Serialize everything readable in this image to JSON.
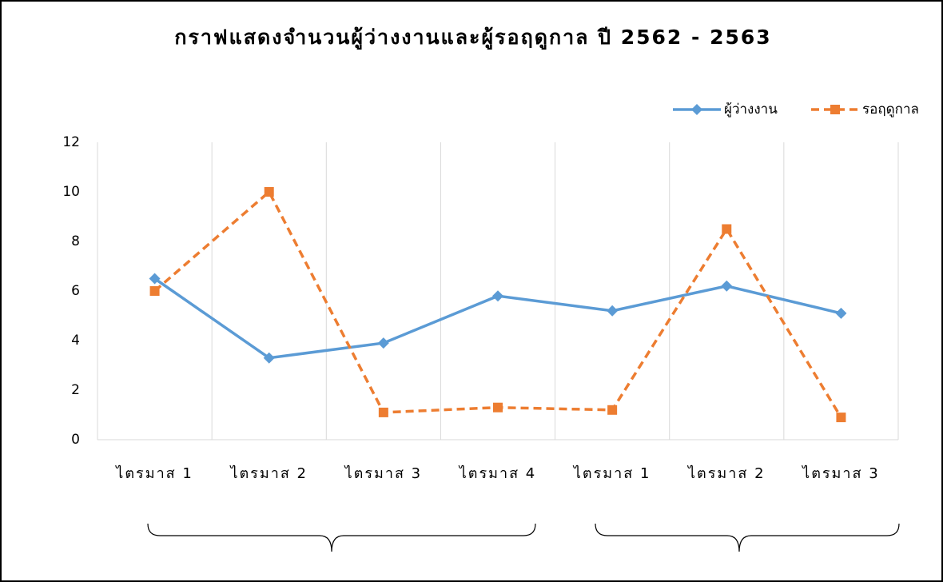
{
  "chart_data": {
    "type": "line",
    "title": "กราฟแสดงจำนวนผู้ว่างงานและผู้รอฤดูกาล ปี 2562 - 2563",
    "categories": [
      "ไตรมาส 1",
      "ไตรมาส 2",
      "ไตรมาส 3",
      "ไตรมาส 4",
      "ไตรมาส 1",
      "ไตรมาส 2",
      "ไตรมาส 3"
    ],
    "series": [
      {
        "name": "ผู้ว่างงาน",
        "color": "#5b9bd5",
        "values": [
          6.5,
          3.3,
          3.9,
          5.8,
          5.2,
          6.2,
          5.1
        ]
      },
      {
        "name": "รอฤดูกาล",
        "color": "#ed7d31",
        "values": [
          6.0,
          10.0,
          1.1,
          1.3,
          1.2,
          8.5,
          0.9
        ]
      }
    ],
    "ylim": [
      0,
      12
    ],
    "yticks": [
      0,
      2,
      4,
      6,
      8,
      10,
      12
    ],
    "grid": true,
    "legend": "top-right"
  }
}
